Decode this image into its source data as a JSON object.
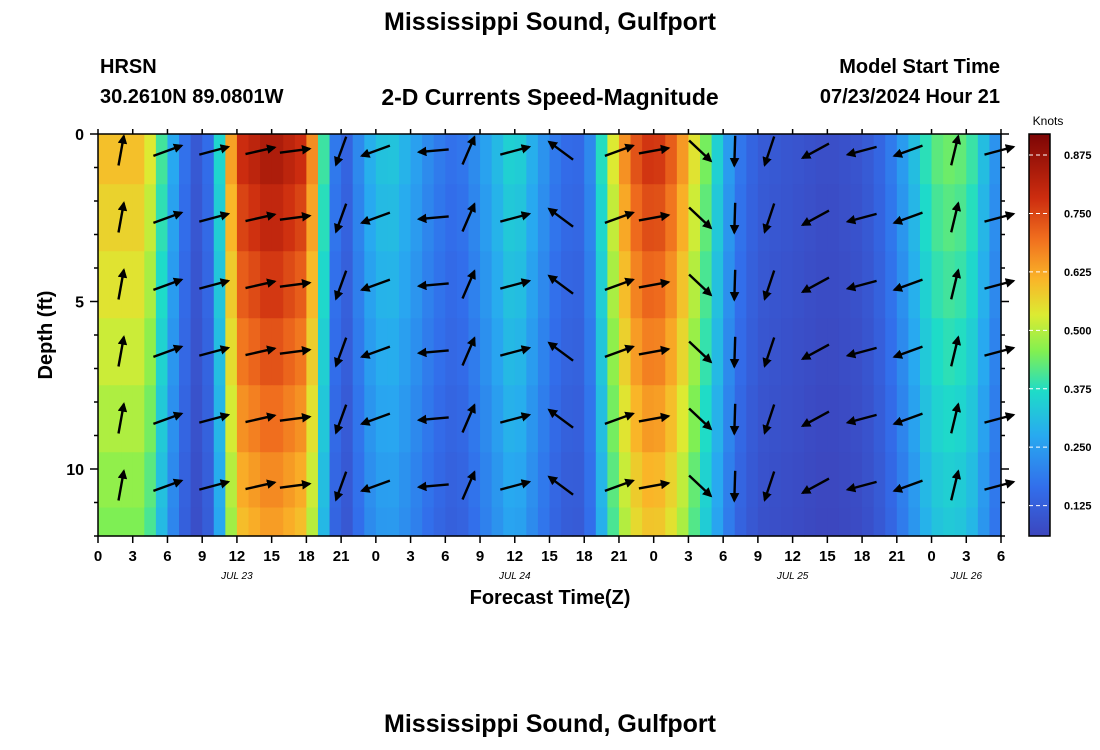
{
  "title": "Mississippi Sound, Gulfport",
  "footer_title": "Mississippi Sound, Gulfport",
  "station": {
    "code": "HRSN",
    "coords": "30.2610N  89.0801W"
  },
  "model": {
    "label": "Model Start Time",
    "time": "07/23/2024 Hour 21"
  },
  "chart_data": {
    "type": "heatmap",
    "title": "2-D Currents Speed-Magnitude",
    "xlabel": "Forecast Time(Z)",
    "ylabel": "Depth (ft)",
    "colorbar_label": "Knots",
    "x_ticks": [
      "0",
      "3",
      "6",
      "9",
      "12",
      "15",
      "18",
      "21",
      "0",
      "3",
      "6",
      "9",
      "12",
      "15",
      "18",
      "21",
      "0",
      "3",
      "6",
      "9",
      "12",
      "15",
      "18",
      "21",
      "0",
      "3",
      "6"
    ],
    "date_labels": [
      {
        "label": "JUL 23",
        "hour_index": 12
      },
      {
        "label": "JUL 24",
        "hour_index": 36
      },
      {
        "label": "JUL 25",
        "hour_index": 60
      },
      {
        "label": "JUL 26",
        "hour_index": 75
      }
    ],
    "y_ticks": [
      "0",
      "5",
      "10"
    ],
    "xlim_hours": [
      0,
      78
    ],
    "ylim_ft": [
      0,
      12
    ],
    "colorbar_ticks": [
      "0.125",
      "0.250",
      "0.375",
      "0.500",
      "0.625",
      "0.750",
      "0.875"
    ],
    "colorbar_range": [
      0.06,
      0.92
    ],
    "speed_profile_knots": [
      [
        0,
        0.6
      ],
      [
        4,
        0.6
      ],
      [
        5,
        0.48
      ],
      [
        6,
        0.33
      ],
      [
        7,
        0.22
      ],
      [
        8,
        0.12
      ],
      [
        9,
        0.1
      ],
      [
        10,
        0.22
      ],
      [
        11,
        0.5
      ],
      [
        12,
        0.78
      ],
      [
        15,
        0.86
      ],
      [
        18,
        0.78
      ],
      [
        19,
        0.55
      ],
      [
        20,
        0.25
      ],
      [
        21,
        0.12
      ],
      [
        22,
        0.16
      ],
      [
        23,
        0.27
      ],
      [
        25,
        0.34
      ],
      [
        27,
        0.28
      ],
      [
        29,
        0.2
      ],
      [
        31,
        0.16
      ],
      [
        33,
        0.24
      ],
      [
        35,
        0.33
      ],
      [
        36,
        0.37
      ],
      [
        38,
        0.26
      ],
      [
        40,
        0.16
      ],
      [
        42,
        0.15
      ],
      [
        43,
        0.28
      ],
      [
        44,
        0.48
      ],
      [
        46,
        0.72
      ],
      [
        48,
        0.8
      ],
      [
        50,
        0.7
      ],
      [
        53,
        0.4
      ],
      [
        55,
        0.2
      ],
      [
        57,
        0.12
      ],
      [
        60,
        0.1
      ],
      [
        63,
        0.08
      ],
      [
        66,
        0.1
      ],
      [
        68,
        0.16
      ],
      [
        70,
        0.28
      ],
      [
        72,
        0.42
      ],
      [
        74,
        0.45
      ],
      [
        76,
        0.38
      ],
      [
        77,
        0.25
      ],
      [
        78,
        0.22
      ]
    ],
    "depth_rows_ft": [
      0.5,
      2.5,
      4.5,
      6.5,
      8.5,
      10.5,
      11.8
    ],
    "arrow_direction_deg": [
      [
        0,
        200
      ],
      [
        3,
        20
      ],
      [
        6,
        20
      ],
      [
        9,
        15
      ],
      [
        12,
        15
      ],
      [
        15,
        12
      ],
      [
        18,
        5
      ],
      [
        21,
        250
      ],
      [
        24,
        200
      ],
      [
        27,
        195
      ],
      [
        30,
        180
      ],
      [
        33,
        10
      ],
      [
        36,
        15
      ],
      [
        39,
        200
      ],
      [
        42,
        30
      ],
      [
        45,
        20
      ],
      [
        48,
        10
      ],
      [
        51,
        340
      ],
      [
        54,
        270
      ],
      [
        57,
        265
      ],
      [
        60,
        225
      ],
      [
        63,
        200
      ],
      [
        66,
        195
      ],
      [
        69,
        200
      ],
      [
        72,
        200
      ],
      [
        75,
        15
      ],
      [
        78,
        15
      ]
    ],
    "arrow_hours": [
      2,
      6,
      10,
      14,
      17,
      21,
      24,
      29,
      32,
      36,
      40,
      45,
      48,
      52,
      55,
      58,
      62,
      66,
      70,
      74,
      78
    ]
  }
}
